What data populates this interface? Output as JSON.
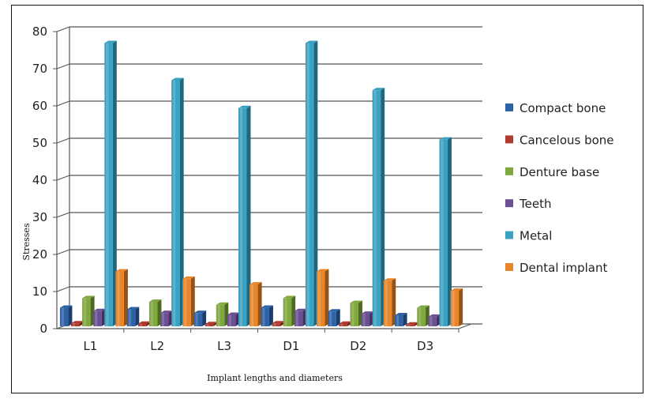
{
  "chart_data": {
    "type": "bar",
    "title": "",
    "xlabel": "Implant lengths and diameters",
    "ylabel": "Stresses",
    "ylim": [
      0,
      80
    ],
    "yticks": [
      "0",
      "10",
      "20",
      "30",
      "40",
      "50",
      "60",
      "70",
      "80"
    ],
    "grid": true,
    "legend_position": "right",
    "categories": [
      "L1",
      "L2",
      "L3",
      "D1",
      "D2",
      "D3"
    ],
    "series": [
      {
        "name": "Compact bone",
        "color": "#2e62a7",
        "values": [
          5.2,
          4.8,
          3.8,
          5.2,
          4.2,
          3.2
        ]
      },
      {
        "name": "Cancelous bone",
        "color": "#b03a2e",
        "values": [
          1.0,
          0.9,
          0.8,
          1.0,
          0.9,
          0.7
        ]
      },
      {
        "name": "Denture base",
        "color": "#7fa83e",
        "values": [
          7.8,
          6.8,
          6.0,
          7.8,
          6.5,
          5.2
        ]
      },
      {
        "name": "Teeth",
        "color": "#6a4f93",
        "values": [
          4.3,
          3.8,
          3.3,
          4.3,
          3.6,
          2.8
        ]
      },
      {
        "name": "Metal",
        "color": "#3aa3c4",
        "values": [
          76.5,
          66.5,
          59.0,
          76.5,
          63.8,
          50.5
        ]
      },
      {
        "name": "Dental implant",
        "color": "#e8862b",
        "values": [
          15.0,
          13.0,
          11.5,
          15.0,
          12.5,
          9.8
        ]
      }
    ]
  }
}
